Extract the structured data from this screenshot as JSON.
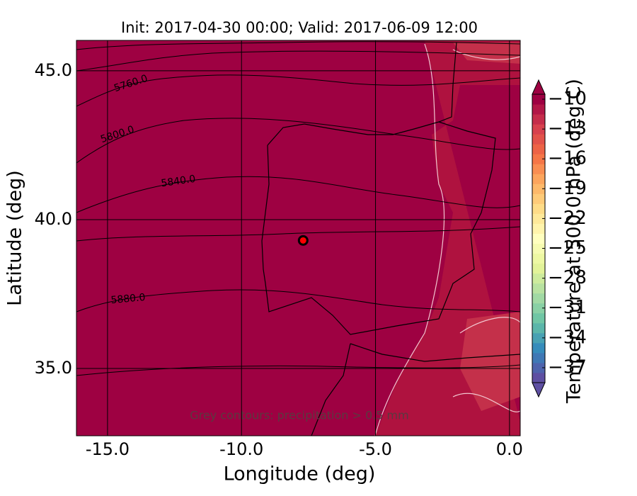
{
  "map": {
    "title": "Init: 2017-04-30 00:00; Valid: 2017-06-09 12:00",
    "xlabel": "Longitude (deg)",
    "ylabel": "Latitude (deg)",
    "xlim": [
      -16.16,
      0.4
    ],
    "ylim": [
      32.74,
      46.02
    ],
    "xticks": [
      {
        "value": -15,
        "label": "-15.0"
      },
      {
        "value": -10,
        "label": "-10.0"
      },
      {
        "value": -5,
        "label": "-5.0"
      },
      {
        "value": 0,
        "label": "0.0"
      }
    ],
    "yticks": [
      {
        "value": 35,
        "label": "35.0"
      },
      {
        "value": 40,
        "label": "40.0"
      },
      {
        "value": 45,
        "label": "45.0"
      }
    ],
    "fill_color": "#9e0142",
    "contour_labels": [
      "5760.0",
      "5800.0",
      "5840.0",
      "5880.0"
    ],
    "annotation": "Grey contours: precipitation > 0.5 mm",
    "marker": {
      "lon": -7.7,
      "lat": 39.3,
      "color": "#ff0000"
    },
    "colorbar": {
      "label": "Temperature at 500.0 hPa (deg C)",
      "lim": [
        -38.5,
        -9.5
      ],
      "ticks": [
        {
          "value": -10,
          "label": "−10"
        },
        {
          "value": -13,
          "label": "−13"
        },
        {
          "value": -16,
          "label": "−16"
        },
        {
          "value": -19,
          "label": "−19"
        },
        {
          "value": -22,
          "label": "−22"
        },
        {
          "value": -25,
          "label": "−25"
        },
        {
          "value": -28,
          "label": "−28"
        },
        {
          "value": -31,
          "label": "−31"
        },
        {
          "value": -34,
          "label": "−34"
        },
        {
          "value": -37,
          "label": "−37"
        }
      ],
      "colormap": [
        "#5e4fa2",
        "#3288bd",
        "#66c2a5",
        "#abdda4",
        "#e6f598",
        "#ffffbf",
        "#fee08b",
        "#fdae61",
        "#f46d43",
        "#d53e4f",
        "#9e0142"
      ]
    }
  }
}
